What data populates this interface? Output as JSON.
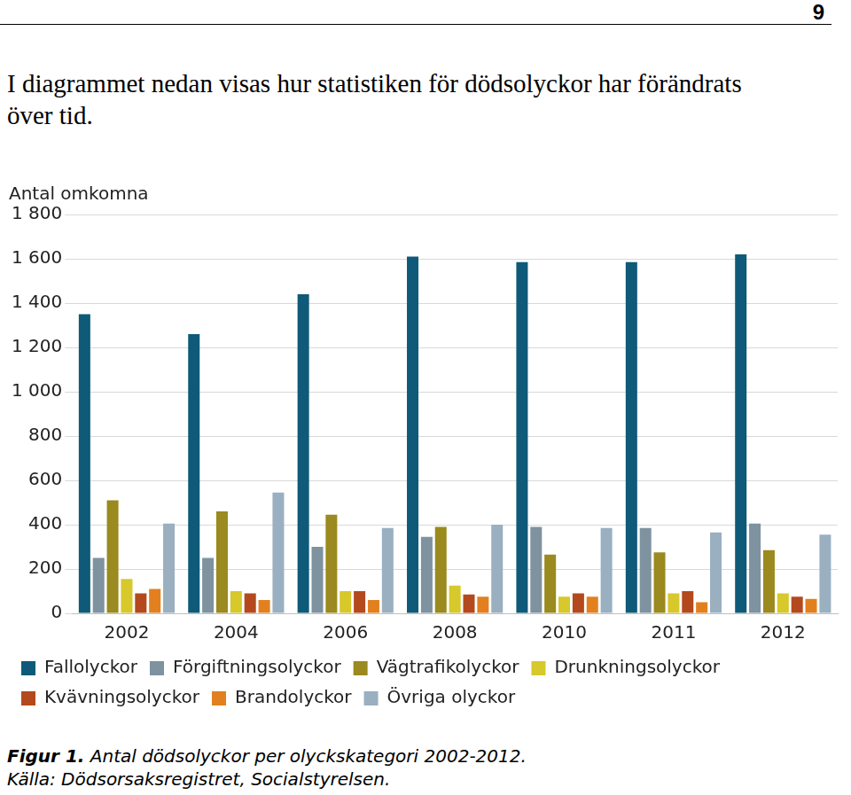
{
  "page_number": "9",
  "text": "I diagrammet nedan visas hur statistiken för dödsolyckor har förändrats över tid.",
  "caption": {
    "label": "Figur 1.",
    "text": "Antal dödsolyckor per olyckskategori 2002-2012."
  },
  "source": "Källa: Dödsorsaksregistret, Socialstyrelsen.",
  "chart_data": {
    "type": "bar",
    "y_label": "Antal omkomna",
    "categories": [
      "2002",
      "2004",
      "2006",
      "2008",
      "2010",
      "2011",
      "2012"
    ],
    "series": [
      {
        "name": "Fallolyckor",
        "color": "#0e5a78",
        "values": [
          1350,
          1260,
          1440,
          1610,
          1585,
          1585,
          1620
        ]
      },
      {
        "name": "Förgiftningsolyckor",
        "color": "#7e929f",
        "values": [
          250,
          250,
          300,
          345,
          390,
          385,
          405
        ]
      },
      {
        "name": "Vägtrafikolyckor",
        "color": "#9a8a1f",
        "values": [
          510,
          460,
          445,
          390,
          265,
          275,
          285
        ]
      },
      {
        "name": "Drunkningsolyckor",
        "color": "#d7c82b",
        "values": [
          155,
          100,
          100,
          125,
          75,
          90,
          90
        ]
      },
      {
        "name": "Kvävningsolyckor",
        "color": "#b4491d",
        "values": [
          90,
          90,
          100,
          85,
          90,
          100,
          75
        ]
      },
      {
        "name": "Brandolyckor",
        "color": "#e2801f",
        "values": [
          110,
          60,
          60,
          75,
          75,
          50,
          65
        ]
      },
      {
        "name": "Övriga olyckor",
        "color": "#9aafc0",
        "values": [
          405,
          545,
          385,
          400,
          385,
          365,
          355
        ]
      }
    ],
    "ylim": [
      0,
      1800
    ],
    "yticks": [
      0,
      200,
      400,
      600,
      800,
      {
        "value": 1000,
        "label": "1 000"
      },
      {
        "value": 1200,
        "label": "1 200"
      },
      {
        "value": 1400,
        "label": "1 400"
      },
      {
        "value": 1600,
        "label": "1 600"
      },
      {
        "value": 1800,
        "label": "1 800"
      }
    ],
    "grid": true,
    "legend": "bottom"
  }
}
